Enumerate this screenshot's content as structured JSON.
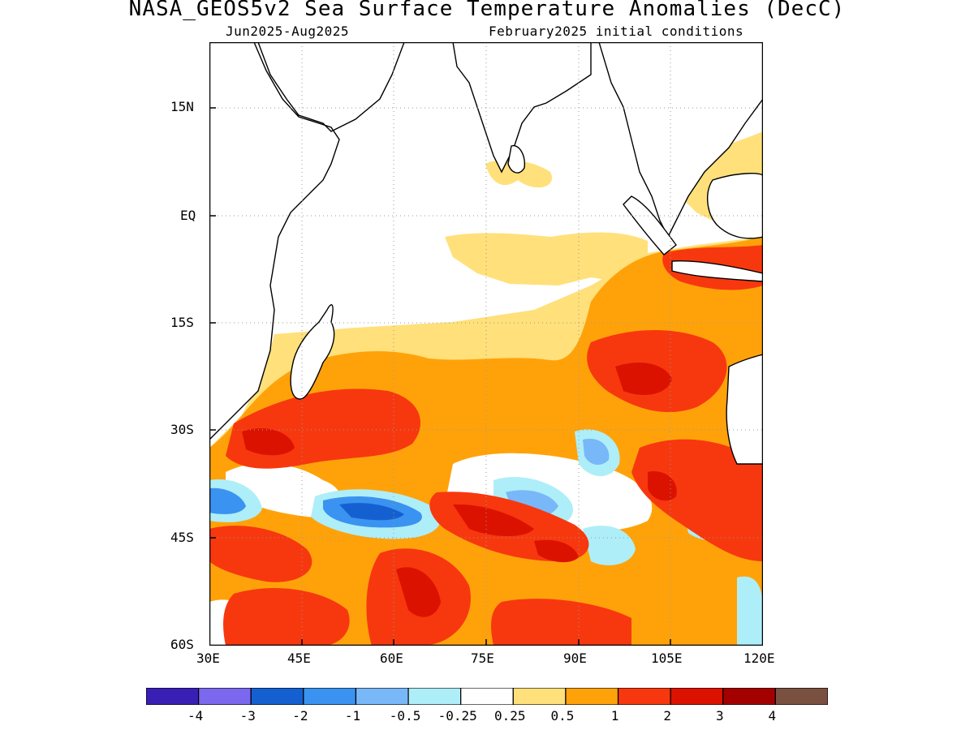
{
  "title": "NASA_GEOS5v2 Sea Surface Temperature Anomalies (DecC)",
  "subtitle_left": "Jun2025-Aug2025",
  "subtitle_right": "February2025 initial conditions",
  "map": {
    "region": "Indian Ocean",
    "lat_ticks": [
      "15N",
      "EQ",
      "15S",
      "30S",
      "45S",
      "60S"
    ],
    "lon_ticks": [
      "30E",
      "45E",
      "60E",
      "75E",
      "90E",
      "105E",
      "120E"
    ],
    "extent": {
      "lon": [
        30,
        120
      ],
      "lat": [
        -60,
        24
      ]
    },
    "gridlines": "dotted",
    "land_fill": "#ffffff",
    "coastline_color": "#000000"
  },
  "legend": {
    "colors": [
      "#3a1fb4",
      "#7b68ee",
      "#1560d0",
      "#3a93f0",
      "#78b8f8",
      "#aeeef8",
      "#ffffff",
      "#ffe07a",
      "#ffa20a",
      "#f7380e",
      "#dc1200",
      "#a30000",
      "#7a5040"
    ],
    "labels": [
      "-4",
      "-3",
      "-2",
      "-1",
      "-0.5",
      "-0.25",
      "0.25",
      "0.5",
      "1",
      "2",
      "3",
      "4"
    ]
  }
}
